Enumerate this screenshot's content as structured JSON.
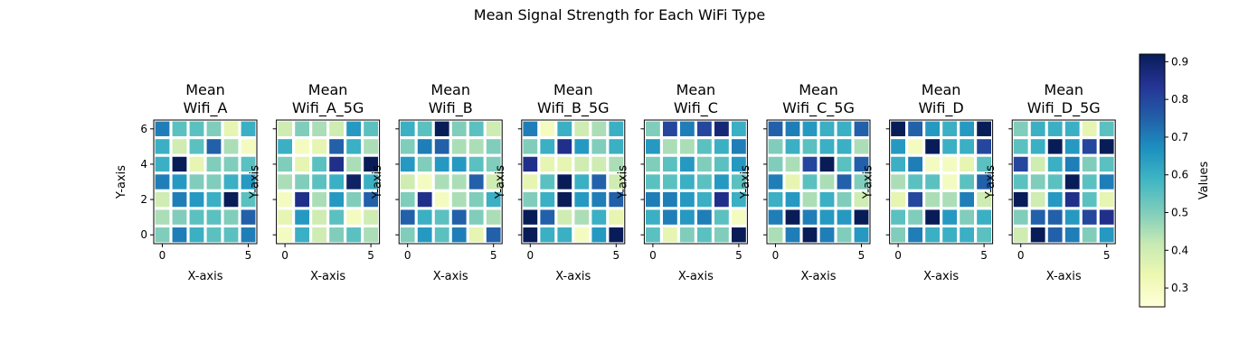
{
  "figure": {
    "title": "Mean Signal Strength for Each WiFi Type"
  },
  "chart_data": {
    "type": "heatmap",
    "colormap": "YlGnBu",
    "xlabel": "X-axis",
    "ylabel": "Y-axis",
    "xlim": [
      -0.5,
      5.5
    ],
    "ylim": [
      -0.5,
      6.5
    ],
    "x_ticks": [
      0,
      5
    ],
    "y_ticks": [
      0,
      2,
      4,
      6
    ],
    "colorbar": {
      "label": "Values",
      "vmin": 0.25,
      "vmax": 0.92,
      "ticks": [
        "0.3",
        "0.4",
        "0.5",
        "0.6",
        "0.7",
        "0.8",
        "0.9"
      ],
      "tick_values": [
        0.3,
        0.4,
        0.5,
        0.6,
        0.7,
        0.8,
        0.9
      ]
    },
    "panels": [
      {
        "title_line1": "Mean",
        "title_line2": "Wifi_A",
        "values": [
          [
            0.5,
            0.7,
            0.6,
            0.55,
            0.55,
            0.7
          ],
          [
            0.45,
            0.5,
            0.55,
            0.55,
            0.5,
            0.75
          ],
          [
            0.4,
            0.7,
            0.65,
            0.6,
            0.92,
            0.55
          ],
          [
            0.7,
            0.65,
            0.5,
            0.5,
            0.6,
            0.65
          ],
          [
            0.6,
            0.92,
            0.35,
            0.5,
            0.5,
            0.55
          ],
          [
            0.6,
            0.4,
            0.55,
            0.75,
            0.45,
            0.3
          ],
          [
            0.7,
            0.55,
            0.55,
            0.5,
            0.35,
            0.6
          ]
        ]
      },
      {
        "title_line1": "Mean",
        "title_line2": "Wifi_A_5G",
        "values": [
          [
            0.3,
            0.6,
            0.4,
            0.5,
            0.55,
            0.45
          ],
          [
            0.35,
            0.65,
            0.4,
            0.55,
            0.3,
            0.4
          ],
          [
            0.3,
            0.85,
            0.45,
            0.65,
            0.5,
            0.75
          ],
          [
            0.45,
            0.5,
            0.55,
            0.6,
            0.9,
            0.6
          ],
          [
            0.5,
            0.35,
            0.55,
            0.85,
            0.45,
            0.92
          ],
          [
            0.6,
            0.3,
            0.35,
            0.75,
            0.6,
            0.45
          ],
          [
            0.4,
            0.5,
            0.45,
            0.4,
            0.65,
            0.55
          ]
        ]
      },
      {
        "title_line1": "Mean",
        "title_line2": "Wifi_B",
        "values": [
          [
            0.5,
            0.65,
            0.55,
            0.7,
            0.35,
            0.75
          ],
          [
            0.75,
            0.6,
            0.55,
            0.75,
            0.5,
            0.45
          ],
          [
            0.5,
            0.85,
            0.3,
            0.45,
            0.5,
            0.6
          ],
          [
            0.4,
            0.3,
            0.45,
            0.45,
            0.75,
            0.4
          ],
          [
            0.65,
            0.5,
            0.65,
            0.65,
            0.55,
            0.5
          ],
          [
            0.5,
            0.7,
            0.75,
            0.45,
            0.45,
            0.5
          ],
          [
            0.6,
            0.55,
            0.92,
            0.5,
            0.55,
            0.4
          ]
        ]
      },
      {
        "title_line1": "Mean",
        "title_line2": "Wifi_B_5G",
        "values": [
          [
            0.92,
            0.6,
            0.6,
            0.3,
            0.65,
            0.92
          ],
          [
            0.92,
            0.75,
            0.4,
            0.45,
            0.6,
            0.35
          ],
          [
            0.5,
            0.6,
            0.92,
            0.65,
            0.7,
            0.75
          ],
          [
            0.35,
            0.55,
            0.92,
            0.6,
            0.75,
            0.4
          ],
          [
            0.85,
            0.35,
            0.35,
            0.4,
            0.4,
            0.45
          ],
          [
            0.5,
            0.6,
            0.85,
            0.65,
            0.5,
            0.6
          ],
          [
            0.7,
            0.3,
            0.6,
            0.4,
            0.45,
            0.6
          ]
        ]
      },
      {
        "title_line1": "Mean",
        "title_line2": "Wifi_C",
        "values": [
          [
            0.55,
            0.35,
            0.5,
            0.55,
            0.5,
            0.92
          ],
          [
            0.6,
            0.7,
            0.65,
            0.7,
            0.55,
            0.3
          ],
          [
            0.7,
            0.7,
            0.65,
            0.6,
            0.85,
            0.6
          ],
          [
            0.55,
            0.55,
            0.6,
            0.55,
            0.65,
            0.55
          ],
          [
            0.5,
            0.55,
            0.65,
            0.5,
            0.55,
            0.65
          ],
          [
            0.65,
            0.45,
            0.45,
            0.55,
            0.6,
            0.7
          ],
          [
            0.5,
            0.8,
            0.7,
            0.8,
            0.88,
            0.6
          ]
        ]
      },
      {
        "title_line1": "Mean",
        "title_line2": "Wifi_C_5G",
        "values": [
          [
            0.45,
            0.7,
            0.92,
            0.7,
            0.5,
            0.65
          ],
          [
            0.7,
            0.92,
            0.7,
            0.65,
            0.65,
            0.92
          ],
          [
            0.6,
            0.65,
            0.45,
            0.6,
            0.5,
            0.4
          ],
          [
            0.7,
            0.35,
            0.55,
            0.45,
            0.75,
            0.5
          ],
          [
            0.5,
            0.45,
            0.8,
            0.92,
            0.55,
            0.75
          ],
          [
            0.5,
            0.6,
            0.55,
            0.6,
            0.6,
            0.45
          ],
          [
            0.75,
            0.7,
            0.65,
            0.6,
            0.6,
            0.75
          ]
        ]
      },
      {
        "title_line1": "Mean",
        "title_line2": "Wifi_D",
        "values": [
          [
            0.5,
            0.7,
            0.6,
            0.6,
            0.6,
            0.55
          ],
          [
            0.55,
            0.5,
            0.92,
            0.65,
            0.5,
            0.6
          ],
          [
            0.35,
            0.8,
            0.45,
            0.45,
            0.7,
            0.4
          ],
          [
            0.45,
            0.55,
            0.55,
            0.3,
            0.55,
            0.75
          ],
          [
            0.6,
            0.7,
            0.3,
            0.3,
            0.35,
            0.55
          ],
          [
            0.65,
            0.3,
            0.92,
            0.6,
            0.6,
            0.8
          ],
          [
            0.92,
            0.75,
            0.65,
            0.6,
            0.65,
            0.92
          ]
        ]
      },
      {
        "title_line1": "Mean",
        "title_line2": "Wifi_D_5G",
        "values": [
          [
            0.4,
            0.92,
            0.75,
            0.7,
            0.5,
            0.65
          ],
          [
            0.5,
            0.75,
            0.75,
            0.65,
            0.8,
            0.85
          ],
          [
            0.92,
            0.4,
            0.65,
            0.85,
            0.55,
            0.35
          ],
          [
            0.55,
            0.5,
            0.55,
            0.92,
            0.55,
            0.7
          ],
          [
            0.8,
            0.4,
            0.6,
            0.7,
            0.5,
            0.55
          ],
          [
            0.55,
            0.6,
            0.92,
            0.65,
            0.8,
            0.92
          ],
          [
            0.5,
            0.6,
            0.6,
            0.6,
            0.35,
            0.55
          ]
        ]
      }
    ]
  }
}
